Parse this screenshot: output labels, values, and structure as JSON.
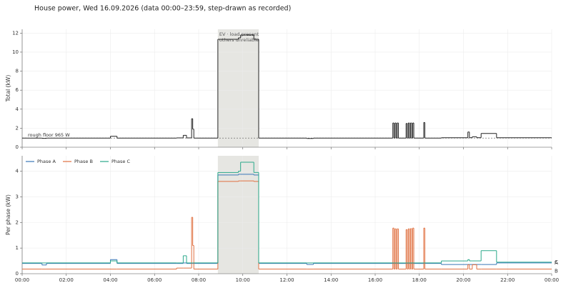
{
  "title": "House power, Wed 16.09.2026   (data 00:00–23:59, step-drawn as recorded)",
  "chart_data": [
    {
      "type": "line",
      "step": "post",
      "ylabel": "Total (kW)",
      "x": [
        0,
        0.9,
        1.1,
        4.0,
        4.3,
        7.0,
        7.3,
        7.45,
        7.68,
        7.73,
        7.78,
        8.87,
        9.8,
        9.9,
        10.5,
        10.72,
        12.9,
        13.2,
        16.8,
        16.85,
        16.9,
        16.95,
        17.0,
        17.05,
        17.4,
        17.45,
        17.5,
        17.55,
        17.6,
        17.65,
        17.7,
        17.75,
        18.2,
        18.25,
        19.0,
        20.2,
        20.27,
        20.4,
        20.6,
        20.8,
        21.5,
        24
      ],
      "values": [
        0.96,
        0.93,
        0.96,
        1.15,
        0.96,
        0.98,
        1.25,
        0.98,
        3.0,
        1.9,
        0.96,
        11.35,
        11.5,
        11.8,
        11.35,
        0.96,
        0.92,
        0.96,
        2.55,
        0.96,
        2.55,
        0.96,
        2.55,
        0.96,
        2.5,
        0.96,
        2.55,
        0.96,
        2.55,
        0.96,
        2.55,
        0.96,
        2.6,
        0.96,
        1.0,
        1.6,
        1.0,
        1.1,
        1.0,
        1.45,
        1.0,
        1.0
      ],
      "color": "#222222",
      "xlim": [
        0,
        24
      ],
      "xticks": [
        0,
        2,
        4,
        6,
        8,
        10,
        12,
        14,
        16,
        18,
        20,
        22,
        24
      ],
      "ylim": [
        0,
        12.4
      ],
      "yticks": [
        0,
        2,
        4,
        6,
        8,
        10,
        12
      ],
      "grid": true,
      "shade": [
        8.87,
        10.72
      ],
      "shade_color": "#e6e6e2",
      "annotation": [
        "EV · load present",
        "others unreliable"
      ],
      "floor": {
        "value": 0.965,
        "label": "rough floor 965 W"
      }
    },
    {
      "type": "line",
      "step": "post",
      "ylabel": "Per phase (kW)",
      "legend": "upper left",
      "x": [
        0,
        0.9,
        1.1,
        4.0,
        4.3,
        7.0,
        7.3,
        7.45,
        7.68,
        7.73,
        7.78,
        8.87,
        9.8,
        9.9,
        10.5,
        10.72,
        12.9,
        13.2,
        16.8,
        16.85,
        16.9,
        16.95,
        17.0,
        17.05,
        17.4,
        17.45,
        17.5,
        17.55,
        17.6,
        17.65,
        17.7,
        17.75,
        18.2,
        18.25,
        19.0,
        20.2,
        20.27,
        20.4,
        20.6,
        20.8,
        21.5,
        24
      ],
      "series": [
        {
          "name": "Phase A",
          "label": "A",
          "color": "#3a78b8",
          "values": [
            0.4,
            0.34,
            0.4,
            0.55,
            0.4,
            0.4,
            0.42,
            0.4,
            0.4,
            0.4,
            0.4,
            3.85,
            3.88,
            3.88,
            3.85,
            0.4,
            0.36,
            0.4,
            0.4,
            0.4,
            0.4,
            0.4,
            0.4,
            0.4,
            0.4,
            0.4,
            0.4,
            0.4,
            0.4,
            0.4,
            0.4,
            0.4,
            0.4,
            0.4,
            0.36,
            0.36,
            0.36,
            0.36,
            0.36,
            0.36,
            0.42,
            0.42
          ]
        },
        {
          "name": "Phase B",
          "label": "B",
          "color": "#e07040",
          "values": [
            0.18,
            0.18,
            0.18,
            0.18,
            0.18,
            0.22,
            0.22,
            0.22,
            2.2,
            1.1,
            0.18,
            3.6,
            3.62,
            3.62,
            3.6,
            0.18,
            0.18,
            0.18,
            1.78,
            0.18,
            1.75,
            0.18,
            1.75,
            0.18,
            1.72,
            0.18,
            1.75,
            0.18,
            1.76,
            0.18,
            1.78,
            0.18,
            1.78,
            0.18,
            0.18,
            0.35,
            0.18,
            0.35,
            0.18,
            0.18,
            0.18,
            0.18
          ]
        },
        {
          "name": "Phase C",
          "label": "C",
          "color": "#2aa88a",
          "values": [
            0.42,
            0.42,
            0.42,
            0.5,
            0.42,
            0.42,
            0.7,
            0.42,
            0.42,
            0.42,
            0.42,
            3.95,
            4.0,
            4.35,
            3.95,
            0.42,
            0.42,
            0.42,
            0.42,
            0.42,
            0.42,
            0.42,
            0.42,
            0.42,
            0.42,
            0.42,
            0.42,
            0.42,
            0.42,
            0.42,
            0.42,
            0.42,
            0.42,
            0.42,
            0.5,
            0.55,
            0.5,
            0.5,
            0.5,
            0.9,
            0.45,
            0.45
          ]
        }
      ],
      "xlim": [
        0,
        24
      ],
      "xticks": [
        {
          "value": 0,
          "label": "00:00"
        },
        {
          "value": 2,
          "label": "02:00"
        },
        {
          "value": 4,
          "label": "04:00"
        },
        {
          "value": 6,
          "label": "06:00"
        },
        {
          "value": 8,
          "label": "08:00"
        },
        {
          "value": 10,
          "label": "10:00"
        },
        {
          "value": 12,
          "label": "12:00"
        },
        {
          "value": 14,
          "label": "14:00"
        },
        {
          "value": 16,
          "label": "16:00"
        },
        {
          "value": 18,
          "label": "18:00"
        },
        {
          "value": 20,
          "label": "20:00"
        },
        {
          "value": 22,
          "label": "22:00"
        },
        {
          "value": 24,
          "label": "00:00"
        }
      ],
      "ylim": [
        0,
        4.6
      ],
      "yticks": [
        0,
        1,
        2,
        3,
        4
      ],
      "grid": true,
      "shade": [
        8.87,
        10.72
      ],
      "shade_color": "#e6e6e2"
    }
  ]
}
